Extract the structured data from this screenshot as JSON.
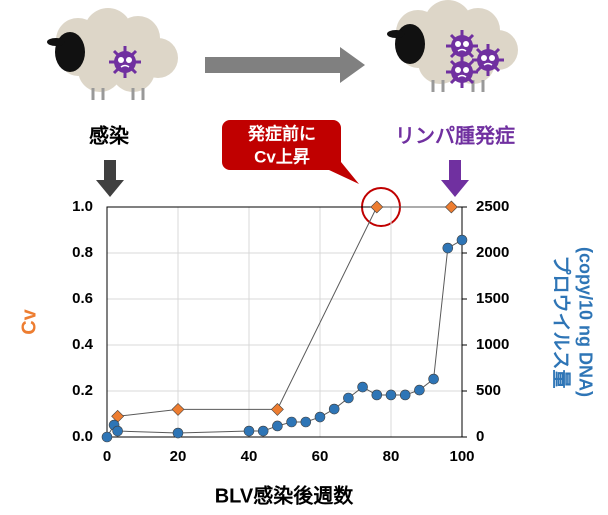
{
  "chart_data": {
    "type": "scatter",
    "xlabel": "BLV感染後週数",
    "ylabel": "Cv",
    "y2label": [
      "プロウイルス量",
      "(copy/10 ng DNA)"
    ],
    "xlim": [
      0,
      100
    ],
    "xticks": [
      0,
      20,
      40,
      60,
      80,
      100
    ],
    "ylim": [
      0,
      1
    ],
    "yticks": [
      {
        "value": 0,
        "label": "0.0"
      },
      0.2,
      0.4,
      0.6,
      0.8,
      {
        "value": 1,
        "label": "1.0"
      }
    ],
    "y2lim": [
      0,
      2500
    ],
    "y2ticks": [
      0,
      500,
      1000,
      1500,
      2000,
      2500
    ],
    "grid": true,
    "series": [
      {
        "name": "Cv",
        "color": "#ed7d31",
        "marker": "diamond",
        "axis": "y",
        "x": [
          3,
          20,
          48,
          76,
          97
        ],
        "values": [
          0.09,
          0.12,
          0.12,
          1.0,
          1.0
        ]
      },
      {
        "name": "プロウイルス量",
        "color": "#2e75b6",
        "marker": "circle",
        "axis": "y2",
        "x": [
          0,
          2,
          3,
          20,
          40,
          44,
          48,
          52,
          56,
          60,
          64,
          68,
          72,
          76,
          80,
          84,
          88,
          92,
          96,
          100
        ],
        "values": [
          0,
          130,
          65,
          43,
          65,
          65,
          120,
          163,
          163,
          217,
          304,
          424,
          543,
          457,
          457,
          457,
          510,
          630,
          2054,
          2141
        ]
      }
    ],
    "annotations": {
      "infection": "感染",
      "lymphoma": "リンパ腫発症",
      "callout": [
        "発症前に",
        "Cv上昇"
      ]
    }
  }
}
